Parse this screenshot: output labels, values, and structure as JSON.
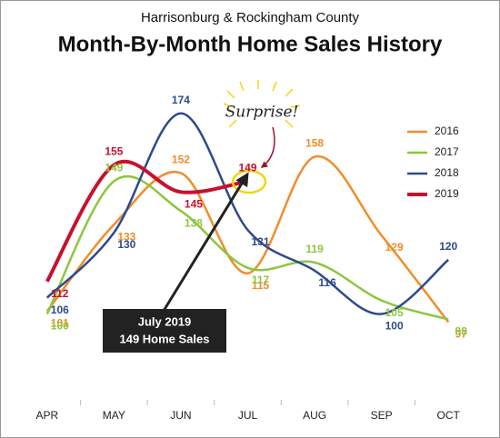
{
  "chart_data": {
    "type": "line",
    "subtitle": "Harrisonburg & Rockingham County",
    "title": "Month-By-Month Home Sales History",
    "categories": [
      "APR",
      "MAY",
      "JUN",
      "JUL",
      "AUG",
      "SEP",
      "OCT"
    ],
    "series": [
      {
        "name": "2016",
        "color": "#f28c28",
        "values": [
          101,
          133,
          152,
          115,
          158,
          129,
          97
        ]
      },
      {
        "name": "2017",
        "color": "#8dc63f",
        "values": [
          100,
          149,
          138,
          117,
          119,
          105,
          98
        ]
      },
      {
        "name": "2018",
        "color": "#2e4a8c",
        "values": [
          106,
          130,
          174,
          131,
          116,
          100,
          120
        ]
      },
      {
        "name": "2019",
        "color": "#c8102e",
        "values": [
          112,
          155,
          145,
          149,
          null,
          null,
          null
        ]
      }
    ],
    "ylim": [
      70,
      185
    ],
    "legend": "right",
    "annotations": {
      "callout": "Surprise!",
      "box_line1": "July 2019",
      "box_line2": "149 Home Sales"
    }
  }
}
